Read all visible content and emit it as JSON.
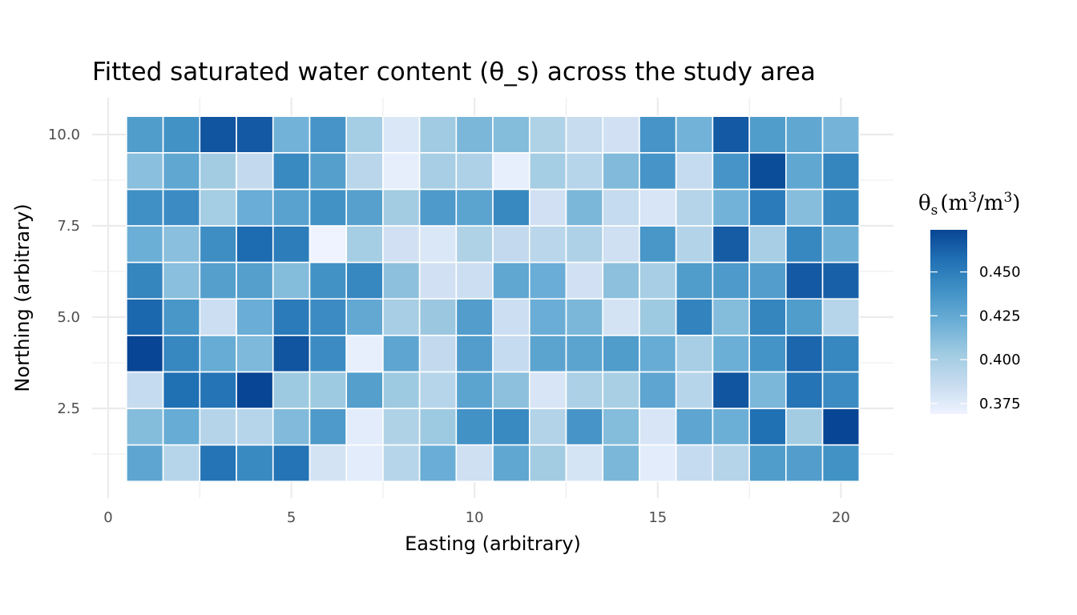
{
  "chart_data": {
    "type": "heatmap",
    "title": "Fitted saturated water content (θ_s) across the study area",
    "xlabel": "Easting (arbitrary)",
    "ylabel": "Northing (arbitrary)",
    "x_ticks": [
      0,
      5,
      10,
      15,
      20
    ],
    "x_tick_labels": [
      "0",
      "5",
      "10",
      "15",
      "20"
    ],
    "y_ticks": [
      2.5,
      5.0,
      7.5,
      10.0
    ],
    "y_tick_labels": [
      "2.5",
      "5.0",
      "7.5",
      "10.0"
    ],
    "grid": true,
    "x": [
      1,
      2,
      3,
      4,
      5,
      6,
      7,
      8,
      9,
      10,
      11,
      12,
      13,
      14,
      15,
      16,
      17,
      18,
      19,
      20
    ],
    "y": [
      1,
      2,
      3,
      4,
      5,
      6,
      7,
      8,
      9,
      10
    ],
    "values_by_row": {
      "10": [
        0.433,
        0.439,
        0.468,
        0.466,
        0.419,
        0.437,
        0.401,
        0.378,
        0.403,
        0.416,
        0.413,
        0.396,
        0.386,
        0.382,
        0.437,
        0.419,
        0.466,
        0.433,
        0.426,
        0.418
      ],
      "9": [
        0.411,
        0.426,
        0.402,
        0.388,
        0.443,
        0.431,
        0.392,
        0.373,
        0.4,
        0.397,
        0.372,
        0.401,
        0.393,
        0.414,
        0.437,
        0.387,
        0.437,
        0.471,
        0.426,
        0.446
      ],
      "8": [
        0.44,
        0.442,
        0.401,
        0.422,
        0.429,
        0.439,
        0.43,
        0.402,
        0.434,
        0.428,
        0.444,
        0.382,
        0.416,
        0.387,
        0.379,
        0.394,
        0.419,
        0.451,
        0.412,
        0.443
      ],
      "7": [
        0.421,
        0.411,
        0.441,
        0.459,
        0.45,
        0.369,
        0.401,
        0.382,
        0.378,
        0.396,
        0.388,
        0.392,
        0.397,
        0.383,
        0.436,
        0.395,
        0.465,
        0.4,
        0.445,
        0.42
      ],
      "6": [
        0.446,
        0.411,
        0.431,
        0.431,
        0.413,
        0.439,
        0.445,
        0.41,
        0.382,
        0.384,
        0.426,
        0.422,
        0.382,
        0.41,
        0.4,
        0.433,
        0.434,
        0.432,
        0.466,
        0.463
      ],
      "5": [
        0.46,
        0.436,
        0.384,
        0.422,
        0.451,
        0.442,
        0.425,
        0.4,
        0.405,
        0.432,
        0.384,
        0.422,
        0.416,
        0.381,
        0.404,
        0.447,
        0.413,
        0.446,
        0.433,
        0.393
      ],
      "4": [
        0.474,
        0.445,
        0.423,
        0.415,
        0.468,
        0.442,
        0.372,
        0.427,
        0.388,
        0.432,
        0.387,
        0.428,
        0.428,
        0.433,
        0.423,
        0.4,
        0.421,
        0.438,
        0.461,
        0.445
      ],
      "3": [
        0.387,
        0.457,
        0.455,
        0.474,
        0.404,
        0.404,
        0.431,
        0.404,
        0.393,
        0.428,
        0.41,
        0.379,
        0.398,
        0.399,
        0.427,
        0.393,
        0.468,
        0.416,
        0.455,
        0.442
      ],
      "2": [
        0.413,
        0.423,
        0.394,
        0.393,
        0.414,
        0.434,
        0.374,
        0.396,
        0.404,
        0.439,
        0.443,
        0.395,
        0.437,
        0.413,
        0.379,
        0.427,
        0.421,
        0.457,
        0.402,
        0.474
      ],
      "1": [
        0.427,
        0.393,
        0.455,
        0.443,
        0.455,
        0.381,
        0.374,
        0.393,
        0.422,
        0.383,
        0.426,
        0.402,
        0.38,
        0.416,
        0.374,
        0.387,
        0.394,
        0.433,
        0.432,
        0.439
      ]
    },
    "colorscale": {
      "name": "Blues",
      "colors": [
        "#eff3ff",
        "#c6dbef",
        "#9ecae1",
        "#6baed6",
        "#4292c6",
        "#2171b5",
        "#084594"
      ],
      "range": [
        0.369,
        0.474
      ]
    },
    "legend": {
      "placement": "right",
      "title_symbol": "θ",
      "title_sub": "s",
      "title_unit_open": "(m",
      "title_sup1": "3",
      "title_unit_mid": "/m",
      "title_sup2": "3",
      "title_unit_close": ")",
      "ticks": [
        0.375,
        0.4,
        0.425,
        0.45
      ],
      "tick_labels": [
        "0.375",
        "0.400",
        "0.425",
        "0.450"
      ]
    },
    "tile_border_color": "#ffffff",
    "grid_color": "#ebebeb"
  }
}
